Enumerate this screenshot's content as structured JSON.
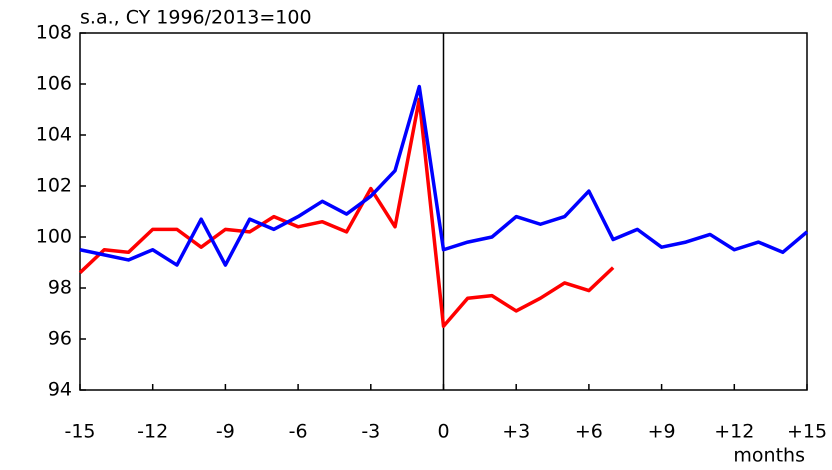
{
  "chart_data": {
    "type": "line",
    "y_unit_label": "s.a.,  CY 1996/2013=100",
    "x_label": "months",
    "x": [
      -15,
      -14,
      -13,
      -12,
      -11,
      -10,
      -9,
      -8,
      -7,
      -6,
      -5,
      -4,
      -3,
      -2,
      -1,
      0,
      1,
      2,
      3,
      4,
      5,
      6,
      7,
      8,
      9,
      10,
      11,
      12,
      13,
      14,
      15
    ],
    "series": [
      {
        "color": "#ff0000",
        "values": [
          98.6,
          99.5,
          99.4,
          100.3,
          100.3,
          99.6,
          100.3,
          100.2,
          100.8,
          100.4,
          100.6,
          100.2,
          101.9,
          100.4,
          105.4,
          96.5,
          97.6,
          97.7,
          97.1,
          97.6,
          98.2,
          97.9,
          98.8,
          null,
          null,
          null,
          null,
          null,
          null,
          null,
          null
        ]
      },
      {
        "color": "#0000ff",
        "values": [
          99.5,
          99.3,
          99.1,
          99.5,
          98.9,
          100.7,
          98.9,
          100.7,
          100.3,
          100.8,
          101.4,
          100.9,
          101.6,
          102.6,
          105.9,
          99.5,
          99.8,
          100.0,
          100.8,
          100.5,
          100.8,
          101.8,
          99.9,
          100.3,
          99.6,
          99.8,
          100.1,
          99.5,
          99.8,
          99.4,
          100.2
        ]
      }
    ],
    "xlim": [
      -15,
      15
    ],
    "xticks": [
      -15,
      -12,
      -9,
      -6,
      -3,
      0,
      {
        "value": 3,
        "label": "+3"
      },
      {
        "value": 6,
        "label": "+6"
      },
      {
        "value": 9,
        "label": "+9"
      },
      {
        "value": 12,
        "label": "+12"
      },
      {
        "value": 15,
        "label": "+15"
      }
    ],
    "ylim": [
      94,
      108
    ],
    "yticks": [
      94,
      96,
      98,
      100,
      102,
      104,
      106,
      108
    ],
    "reference_line_x": 0,
    "grid": false
  }
}
